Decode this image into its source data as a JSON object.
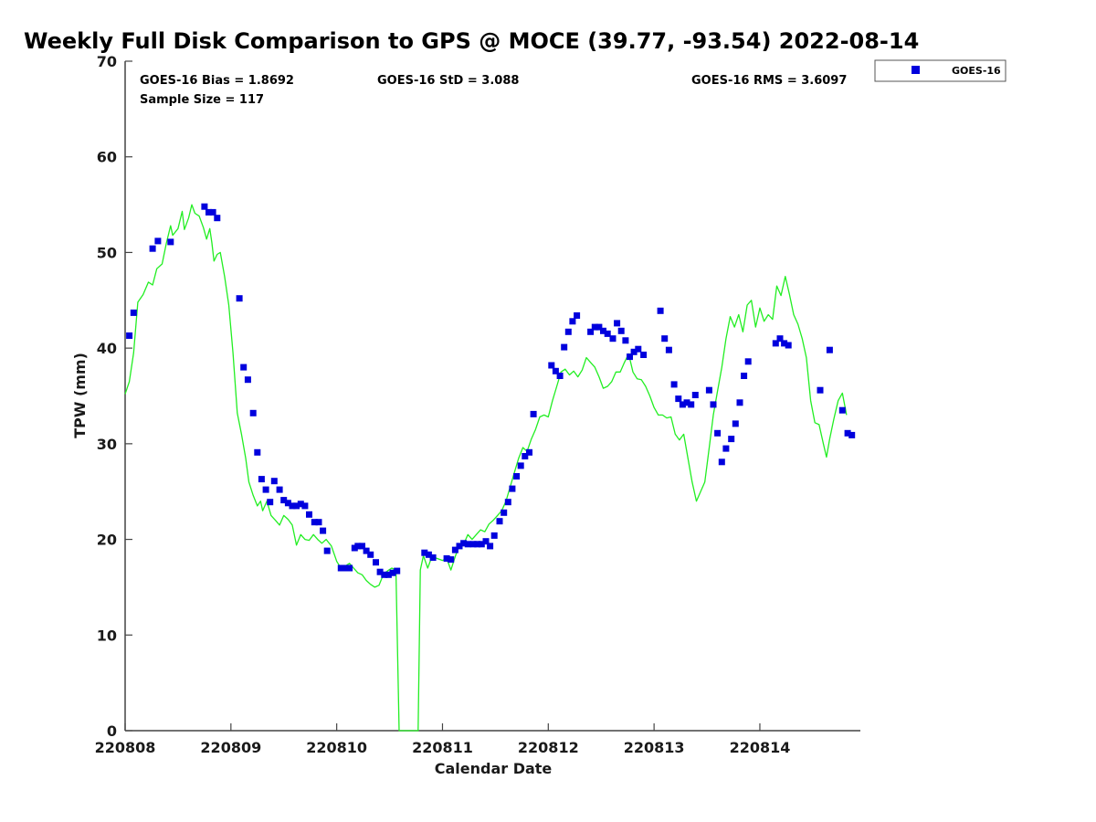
{
  "chart_data": {
    "type": "line",
    "title": "Weekly Full Disk Comparison to GPS @ MOCE (39.77, -93.54) 2022-08-14",
    "xlabel": "Calendar Date",
    "ylabel": "TPW (mm)",
    "xlim": [
      0,
      6.95
    ],
    "ylim": [
      0,
      70
    ],
    "x_tick_values": [
      0,
      1,
      2,
      3,
      4,
      5,
      6
    ],
    "x_tick_labels": [
      "220808",
      "220809",
      "220810",
      "220811",
      "220812",
      "220813",
      "220814"
    ],
    "y_ticks": [
      0,
      10,
      20,
      30,
      40,
      50,
      60,
      70
    ],
    "stats": {
      "bias": "GOES-16 Bias = 1.8692",
      "std": "GOES-16 StD = 3.088",
      "rms": "GOES-16 RMS = 3.6097",
      "sample": "Sample Size = 117"
    },
    "legend": [
      {
        "name": "GOES-16",
        "color": "#0000dd",
        "marker": "square"
      }
    ],
    "series": [
      {
        "name": "GPS",
        "color": "#22ee22",
        "points": [
          [
            0.0,
            35.2
          ],
          [
            0.04,
            36.5
          ],
          [
            0.08,
            39.5
          ],
          [
            0.12,
            44.8
          ],
          [
            0.17,
            45.6
          ],
          [
            0.22,
            46.9
          ],
          [
            0.26,
            46.6
          ],
          [
            0.3,
            48.3
          ],
          [
            0.35,
            48.8
          ],
          [
            0.39,
            51.0
          ],
          [
            0.43,
            52.8
          ],
          [
            0.45,
            51.8
          ],
          [
            0.5,
            52.5
          ],
          [
            0.54,
            54.3
          ],
          [
            0.56,
            52.4
          ],
          [
            0.6,
            53.6
          ],
          [
            0.63,
            55.0
          ],
          [
            0.66,
            54.1
          ],
          [
            0.7,
            53.8
          ],
          [
            0.74,
            52.6
          ],
          [
            0.77,
            51.4
          ],
          [
            0.8,
            52.5
          ],
          [
            0.82,
            51.0
          ],
          [
            0.84,
            49.1
          ],
          [
            0.87,
            49.8
          ],
          [
            0.9,
            50.0
          ],
          [
            0.94,
            47.5
          ],
          [
            0.98,
            44.5
          ],
          [
            1.02,
            39.5
          ],
          [
            1.06,
            33.2
          ],
          [
            1.1,
            31.0
          ],
          [
            1.14,
            28.5
          ],
          [
            1.17,
            26.0
          ],
          [
            1.21,
            24.6
          ],
          [
            1.25,
            23.5
          ],
          [
            1.28,
            24.0
          ],
          [
            1.3,
            23.0
          ],
          [
            1.34,
            24.0
          ],
          [
            1.38,
            22.5
          ],
          [
            1.42,
            22.0
          ],
          [
            1.46,
            21.5
          ],
          [
            1.5,
            22.5
          ],
          [
            1.54,
            22.1
          ],
          [
            1.58,
            21.5
          ],
          [
            1.62,
            19.4
          ],
          [
            1.66,
            20.5
          ],
          [
            1.7,
            20.0
          ],
          [
            1.74,
            19.9
          ],
          [
            1.78,
            20.5
          ],
          [
            1.82,
            20.0
          ],
          [
            1.86,
            19.6
          ],
          [
            1.9,
            20.0
          ],
          [
            1.95,
            19.3
          ],
          [
            2.0,
            17.7
          ],
          [
            2.04,
            17.0
          ],
          [
            2.08,
            17.2
          ],
          [
            2.12,
            17.5
          ],
          [
            2.16,
            17.0
          ],
          [
            2.2,
            16.5
          ],
          [
            2.24,
            16.3
          ],
          [
            2.28,
            15.7
          ],
          [
            2.32,
            15.3
          ],
          [
            2.36,
            15.0
          ],
          [
            2.4,
            15.2
          ],
          [
            2.44,
            16.3
          ],
          [
            2.48,
            16.7
          ],
          [
            2.52,
            17.0
          ],
          [
            2.56,
            16.8
          ],
          [
            2.59,
            0.0
          ],
          [
            2.77,
            0.0
          ],
          [
            2.79,
            16.8
          ],
          [
            2.82,
            18.3
          ],
          [
            2.86,
            17.0
          ],
          [
            2.9,
            18.2
          ],
          [
            2.95,
            18.0
          ],
          [
            3.0,
            17.8
          ],
          [
            3.04,
            18.0
          ],
          [
            3.08,
            16.8
          ],
          [
            3.12,
            18.2
          ],
          [
            3.16,
            19.4
          ],
          [
            3.2,
            19.5
          ],
          [
            3.24,
            20.5
          ],
          [
            3.28,
            20.0
          ],
          [
            3.32,
            20.5
          ],
          [
            3.36,
            21.0
          ],
          [
            3.4,
            20.8
          ],
          [
            3.44,
            21.6
          ],
          [
            3.48,
            22.0
          ],
          [
            3.52,
            22.5
          ],
          [
            3.56,
            23.0
          ],
          [
            3.6,
            24.0
          ],
          [
            3.64,
            25.5
          ],
          [
            3.68,
            27.0
          ],
          [
            3.72,
            28.5
          ],
          [
            3.76,
            29.6
          ],
          [
            3.8,
            29.2
          ],
          [
            3.84,
            30.5
          ],
          [
            3.88,
            31.5
          ],
          [
            3.92,
            32.8
          ],
          [
            3.96,
            33.0
          ],
          [
            4.0,
            32.8
          ],
          [
            4.04,
            34.5
          ],
          [
            4.08,
            36.0
          ],
          [
            4.12,
            37.5
          ],
          [
            4.16,
            37.8
          ],
          [
            4.2,
            37.2
          ],
          [
            4.24,
            37.6
          ],
          [
            4.28,
            37.0
          ],
          [
            4.32,
            37.7
          ],
          [
            4.36,
            39.0
          ],
          [
            4.4,
            38.5
          ],
          [
            4.44,
            38.0
          ],
          [
            4.48,
            37.0
          ],
          [
            4.52,
            35.8
          ],
          [
            4.56,
            36.0
          ],
          [
            4.6,
            36.5
          ],
          [
            4.64,
            37.5
          ],
          [
            4.68,
            37.5
          ],
          [
            4.72,
            38.5
          ],
          [
            4.76,
            39.4
          ],
          [
            4.8,
            37.5
          ],
          [
            4.84,
            36.8
          ],
          [
            4.88,
            36.7
          ],
          [
            4.92,
            36.0
          ],
          [
            4.96,
            35.0
          ],
          [
            5.0,
            33.8
          ],
          [
            5.04,
            33.0
          ],
          [
            5.08,
            33.0
          ],
          [
            5.12,
            32.7
          ],
          [
            5.16,
            32.8
          ],
          [
            5.2,
            31.0
          ],
          [
            5.24,
            30.4
          ],
          [
            5.28,
            31.0
          ],
          [
            5.32,
            28.5
          ],
          [
            5.36,
            26.0
          ],
          [
            5.4,
            24.0
          ],
          [
            5.44,
            25.0
          ],
          [
            5.48,
            26.0
          ],
          [
            5.52,
            29.5
          ],
          [
            5.56,
            33.0
          ],
          [
            5.6,
            35.5
          ],
          [
            5.64,
            38.0
          ],
          [
            5.68,
            41.0
          ],
          [
            5.72,
            43.3
          ],
          [
            5.76,
            42.2
          ],
          [
            5.8,
            43.5
          ],
          [
            5.84,
            41.7
          ],
          [
            5.88,
            44.5
          ],
          [
            5.92,
            45.0
          ],
          [
            5.96,
            42.2
          ],
          [
            6.0,
            44.2
          ],
          [
            6.04,
            42.8
          ],
          [
            6.08,
            43.5
          ],
          [
            6.12,
            43.0
          ],
          [
            6.16,
            46.5
          ],
          [
            6.2,
            45.5
          ],
          [
            6.24,
            47.5
          ],
          [
            6.28,
            45.6
          ],
          [
            6.32,
            43.5
          ],
          [
            6.36,
            42.5
          ],
          [
            6.4,
            41.0
          ],
          [
            6.44,
            39.0
          ],
          [
            6.48,
            34.5
          ],
          [
            6.52,
            32.2
          ],
          [
            6.56,
            32.0
          ],
          [
            6.6,
            30.0
          ],
          [
            6.63,
            28.6
          ],
          [
            6.66,
            30.5
          ],
          [
            6.7,
            32.6
          ],
          [
            6.74,
            34.5
          ],
          [
            6.78,
            35.3
          ],
          [
            6.82,
            33.0
          ]
        ]
      },
      {
        "name": "GOES-16",
        "color": "#0000dd",
        "points": [
          [
            0.04,
            41.3
          ],
          [
            0.08,
            43.7
          ],
          [
            0.26,
            50.4
          ],
          [
            0.31,
            51.2
          ],
          [
            0.43,
            51.1
          ],
          [
            0.75,
            54.8
          ],
          [
            0.79,
            54.2
          ],
          [
            0.83,
            54.2
          ],
          [
            0.87,
            53.6
          ],
          [
            1.08,
            45.2
          ],
          [
            1.12,
            38.0
          ],
          [
            1.16,
            36.7
          ],
          [
            1.21,
            33.2
          ],
          [
            1.25,
            29.1
          ],
          [
            1.29,
            26.3
          ],
          [
            1.33,
            25.2
          ],
          [
            1.37,
            23.9
          ],
          [
            1.41,
            26.1
          ],
          [
            1.46,
            25.2
          ],
          [
            1.5,
            24.1
          ],
          [
            1.54,
            23.8
          ],
          [
            1.58,
            23.5
          ],
          [
            1.62,
            23.5
          ],
          [
            1.66,
            23.7
          ],
          [
            1.7,
            23.5
          ],
          [
            1.74,
            22.6
          ],
          [
            1.79,
            21.8
          ],
          [
            1.83,
            21.8
          ],
          [
            1.87,
            20.9
          ],
          [
            1.91,
            18.8
          ],
          [
            2.04,
            17.0
          ],
          [
            2.08,
            17.0
          ],
          [
            2.12,
            17.0
          ],
          [
            2.17,
            19.1
          ],
          [
            2.2,
            19.3
          ],
          [
            2.24,
            19.3
          ],
          [
            2.28,
            18.8
          ],
          [
            2.32,
            18.4
          ],
          [
            2.37,
            17.6
          ],
          [
            2.41,
            16.6
          ],
          [
            2.45,
            16.3
          ],
          [
            2.49,
            16.3
          ],
          [
            2.53,
            16.5
          ],
          [
            2.57,
            16.7
          ],
          [
            2.83,
            18.6
          ],
          [
            2.87,
            18.4
          ],
          [
            2.91,
            18.1
          ],
          [
            3.04,
            18.0
          ],
          [
            3.08,
            17.9
          ],
          [
            3.12,
            18.9
          ],
          [
            3.16,
            19.3
          ],
          [
            3.2,
            19.6
          ],
          [
            3.24,
            19.5
          ],
          [
            3.29,
            19.5
          ],
          [
            3.33,
            19.5
          ],
          [
            3.37,
            19.5
          ],
          [
            3.41,
            19.8
          ],
          [
            3.45,
            19.3
          ],
          [
            3.49,
            20.4
          ],
          [
            3.54,
            21.9
          ],
          [
            3.58,
            22.8
          ],
          [
            3.62,
            23.9
          ],
          [
            3.66,
            25.3
          ],
          [
            3.7,
            26.6
          ],
          [
            3.74,
            27.7
          ],
          [
            3.78,
            28.7
          ],
          [
            3.82,
            29.1
          ],
          [
            3.86,
            33.1
          ],
          [
            4.03,
            38.2
          ],
          [
            4.07,
            37.6
          ],
          [
            4.11,
            37.1
          ],
          [
            4.15,
            40.1
          ],
          [
            4.19,
            41.7
          ],
          [
            4.23,
            42.8
          ],
          [
            4.27,
            43.4
          ],
          [
            4.4,
            41.7
          ],
          [
            4.44,
            42.2
          ],
          [
            4.48,
            42.2
          ],
          [
            4.52,
            41.8
          ],
          [
            4.56,
            41.5
          ],
          [
            4.61,
            41.0
          ],
          [
            4.65,
            42.6
          ],
          [
            4.69,
            41.8
          ],
          [
            4.73,
            40.8
          ],
          [
            4.77,
            39.1
          ],
          [
            4.81,
            39.6
          ],
          [
            4.85,
            39.9
          ],
          [
            4.9,
            39.3
          ],
          [
            5.06,
            43.9
          ],
          [
            5.1,
            41.0
          ],
          [
            5.14,
            39.8
          ],
          [
            5.19,
            36.2
          ],
          [
            5.23,
            34.7
          ],
          [
            5.27,
            34.1
          ],
          [
            5.31,
            34.3
          ],
          [
            5.35,
            34.1
          ],
          [
            5.39,
            35.1
          ],
          [
            5.52,
            35.6
          ],
          [
            5.56,
            34.1
          ],
          [
            5.6,
            31.1
          ],
          [
            5.64,
            28.1
          ],
          [
            5.68,
            29.5
          ],
          [
            5.73,
            30.5
          ],
          [
            5.77,
            32.1
          ],
          [
            5.81,
            34.3
          ],
          [
            5.85,
            37.1
          ],
          [
            5.89,
            38.6
          ],
          [
            6.15,
            40.5
          ],
          [
            6.19,
            41.0
          ],
          [
            6.23,
            40.5
          ],
          [
            6.27,
            40.3
          ],
          [
            6.57,
            35.6
          ],
          [
            6.66,
            39.8
          ],
          [
            6.78,
            33.5
          ],
          [
            6.83,
            31.1
          ],
          [
            6.87,
            30.9
          ]
        ]
      }
    ]
  }
}
